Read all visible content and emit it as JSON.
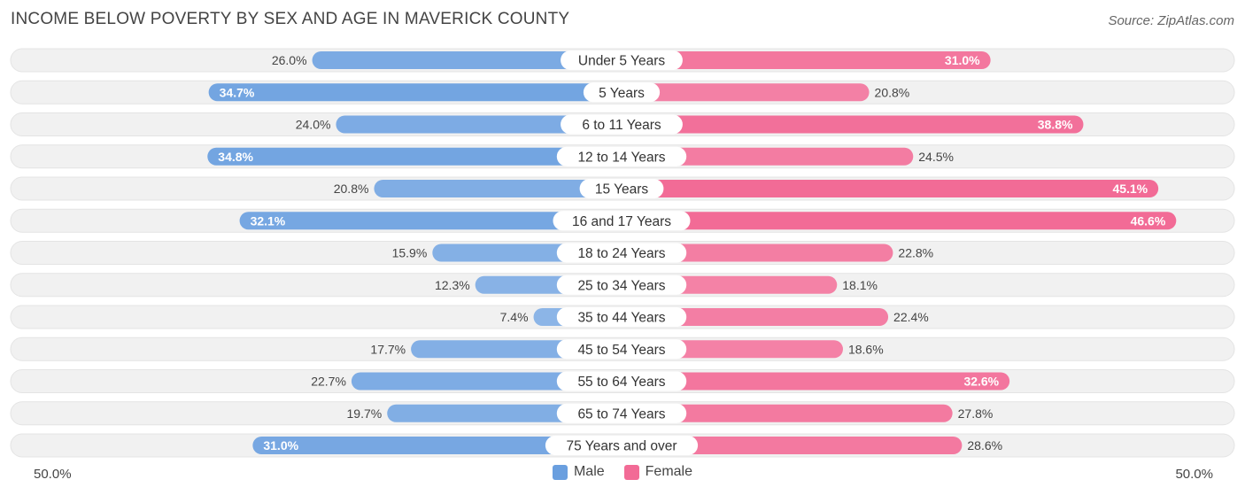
{
  "title": "INCOME BELOW POVERTY BY SEX AND AGE IN MAVERICK COUNTY",
  "source": "Source: ZipAtlas.com",
  "colors": {
    "male": "#6a9fdf",
    "male_light": "#a9c8ee",
    "female": "#f26b96",
    "female_light": "#f6a6c0",
    "track": "#f1f1f1"
  },
  "legend": {
    "male": "Male",
    "female": "Female"
  },
  "axis": {
    "left_label": "50.0%",
    "right_label": "50.0%"
  },
  "chart_data": {
    "type": "bar",
    "orientation": "horizontal-diverging",
    "title": "INCOME BELOW POVERTY BY SEX AND AGE IN MAVERICK COUNTY",
    "categories": [
      "Under 5 Years",
      "5 Years",
      "6 to 11 Years",
      "12 to 14 Years",
      "15 Years",
      "16 and 17 Years",
      "18 to 24 Years",
      "25 to 34 Years",
      "35 to 44 Years",
      "45 to 54 Years",
      "55 to 64 Years",
      "65 to 74 Years",
      "75 Years and over"
    ],
    "series": [
      {
        "name": "Male",
        "values": [
          26.0,
          34.7,
          24.0,
          34.8,
          20.8,
          32.1,
          15.9,
          12.3,
          7.4,
          17.7,
          22.7,
          19.7,
          31.0
        ],
        "labels": [
          "26.0%",
          "34.7%",
          "24.0%",
          "34.8%",
          "20.8%",
          "32.1%",
          "15.9%",
          "12.3%",
          "7.4%",
          "17.7%",
          "22.7%",
          "19.7%",
          "31.0%"
        ]
      },
      {
        "name": "Female",
        "values": [
          31.0,
          20.8,
          38.8,
          24.5,
          45.1,
          46.6,
          22.8,
          18.1,
          22.4,
          18.6,
          32.6,
          27.8,
          28.6
        ],
        "labels": [
          "31.0%",
          "20.8%",
          "38.8%",
          "24.5%",
          "45.1%",
          "46.6%",
          "22.8%",
          "18.1%",
          "22.4%",
          "18.6%",
          "32.6%",
          "27.8%",
          "28.6%"
        ]
      }
    ],
    "xlim": [
      0,
      50
    ],
    "legend_position": "bottom-center"
  }
}
